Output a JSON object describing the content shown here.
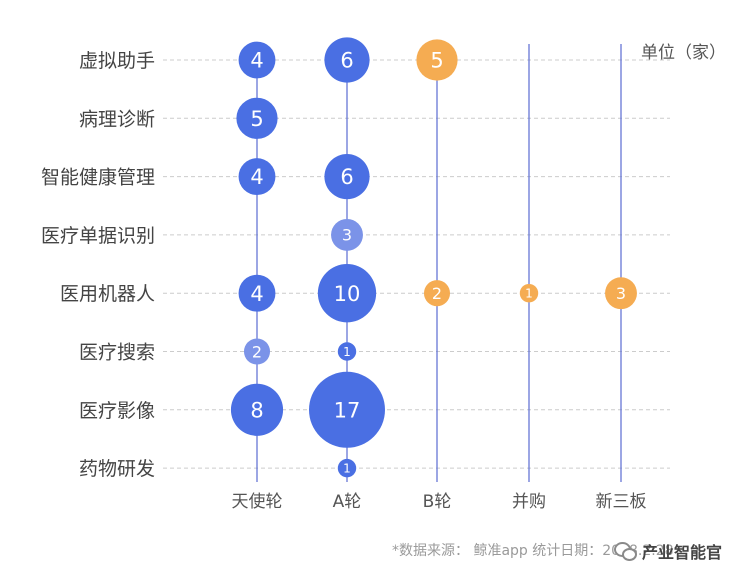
{
  "chart_data": {
    "type": "bubble",
    "unit_label": "单位（家）",
    "x_categories": [
      "天使轮",
      "A轮",
      "B轮",
      "并购",
      "新三板"
    ],
    "y_categories": [
      "虚拟助手",
      "病理诊断",
      "智能健康管理",
      "医疗单据识别",
      "医用机器人",
      "医疗搜索",
      "医疗影像",
      "药物研发"
    ],
    "points": [
      {
        "y": "虚拟助手",
        "x": "天使轮",
        "value": 4
      },
      {
        "y": "虚拟助手",
        "x": "A轮",
        "value": 6
      },
      {
        "y": "虚拟助手",
        "x": "B轮",
        "value": 5
      },
      {
        "y": "病理诊断",
        "x": "天使轮",
        "value": 5
      },
      {
        "y": "智能健康管理",
        "x": "天使轮",
        "value": 4
      },
      {
        "y": "智能健康管理",
        "x": "A轮",
        "value": 6
      },
      {
        "y": "医疗单据识别",
        "x": "A轮",
        "value": 3
      },
      {
        "y": "医用机器人",
        "x": "天使轮",
        "value": 4
      },
      {
        "y": "医用机器人",
        "x": "A轮",
        "value": 10
      },
      {
        "y": "医用机器人",
        "x": "B轮",
        "value": 2
      },
      {
        "y": "医用机器人",
        "x": "并购",
        "value": 1
      },
      {
        "y": "医用机器人",
        "x": "新三板",
        "value": 3
      },
      {
        "y": "医疗搜索",
        "x": "天使轮",
        "value": 2
      },
      {
        "y": "医疗搜索",
        "x": "A轮",
        "value": 1
      },
      {
        "y": "医疗影像",
        "x": "天使轮",
        "value": 8
      },
      {
        "y": "医疗影像",
        "x": "A轮",
        "value": 17
      },
      {
        "y": "药物研发",
        "x": "A轮",
        "value": 1
      }
    ],
    "colors": {
      "blue": "#4a6fe3",
      "light_blue": "#7b93e8",
      "orange": "#f5ac52",
      "line": "#5a6cd1",
      "grid": "#cccccc"
    },
    "grid": true,
    "source_note": "*数据来源： 鲸准app  统计日期：2018.2.28",
    "watermark": "产业智能官"
  }
}
